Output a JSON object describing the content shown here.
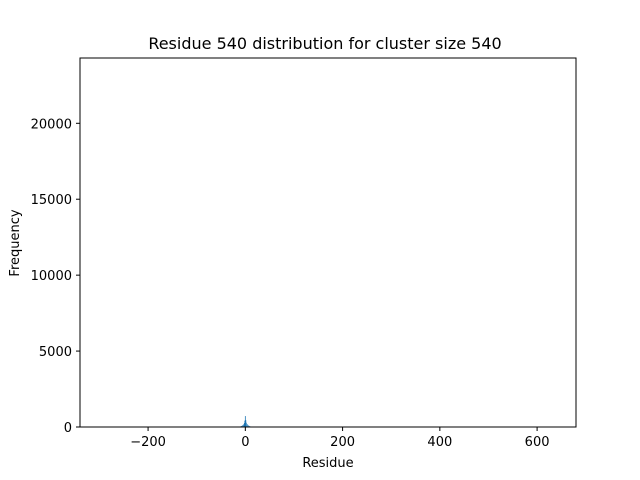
{
  "chart_data": {
    "type": "bar",
    "title": "Residue 540  distribution for cluster size 540",
    "xlabel": "Residue",
    "ylabel": "Frequency",
    "xlim": [
      -340,
      680
    ],
    "ylim": [
      0,
      24300
    ],
    "xticks": [
      -200,
      0,
      200,
      400,
      600
    ],
    "xtick_labels": [
      "−200",
      "0",
      "200",
      "400",
      "600"
    ],
    "yticks": [
      0,
      5000,
      10000,
      15000,
      20000
    ],
    "ytick_labels": [
      "0",
      "5000",
      "10000",
      "15000",
      "20000"
    ],
    "bar_color": "#1f77b4",
    "grid": false,
    "bins": [
      {
        "x": -12,
        "y": 20
      },
      {
        "x": -10,
        "y": 40
      },
      {
        "x": -8,
        "y": 70
      },
      {
        "x": -6,
        "y": 110
      },
      {
        "x": -4,
        "y": 170
      },
      {
        "x": -2,
        "y": 260
      },
      {
        "x": -1,
        "y": 420
      },
      {
        "x": 0,
        "y": 720
      },
      {
        "x": 1,
        "y": 450
      },
      {
        "x": 2,
        "y": 280
      },
      {
        "x": 4,
        "y": 180
      },
      {
        "x": 6,
        "y": 110
      },
      {
        "x": 8,
        "y": 70
      },
      {
        "x": 10,
        "y": 40
      },
      {
        "x": 12,
        "y": 20
      }
    ]
  }
}
